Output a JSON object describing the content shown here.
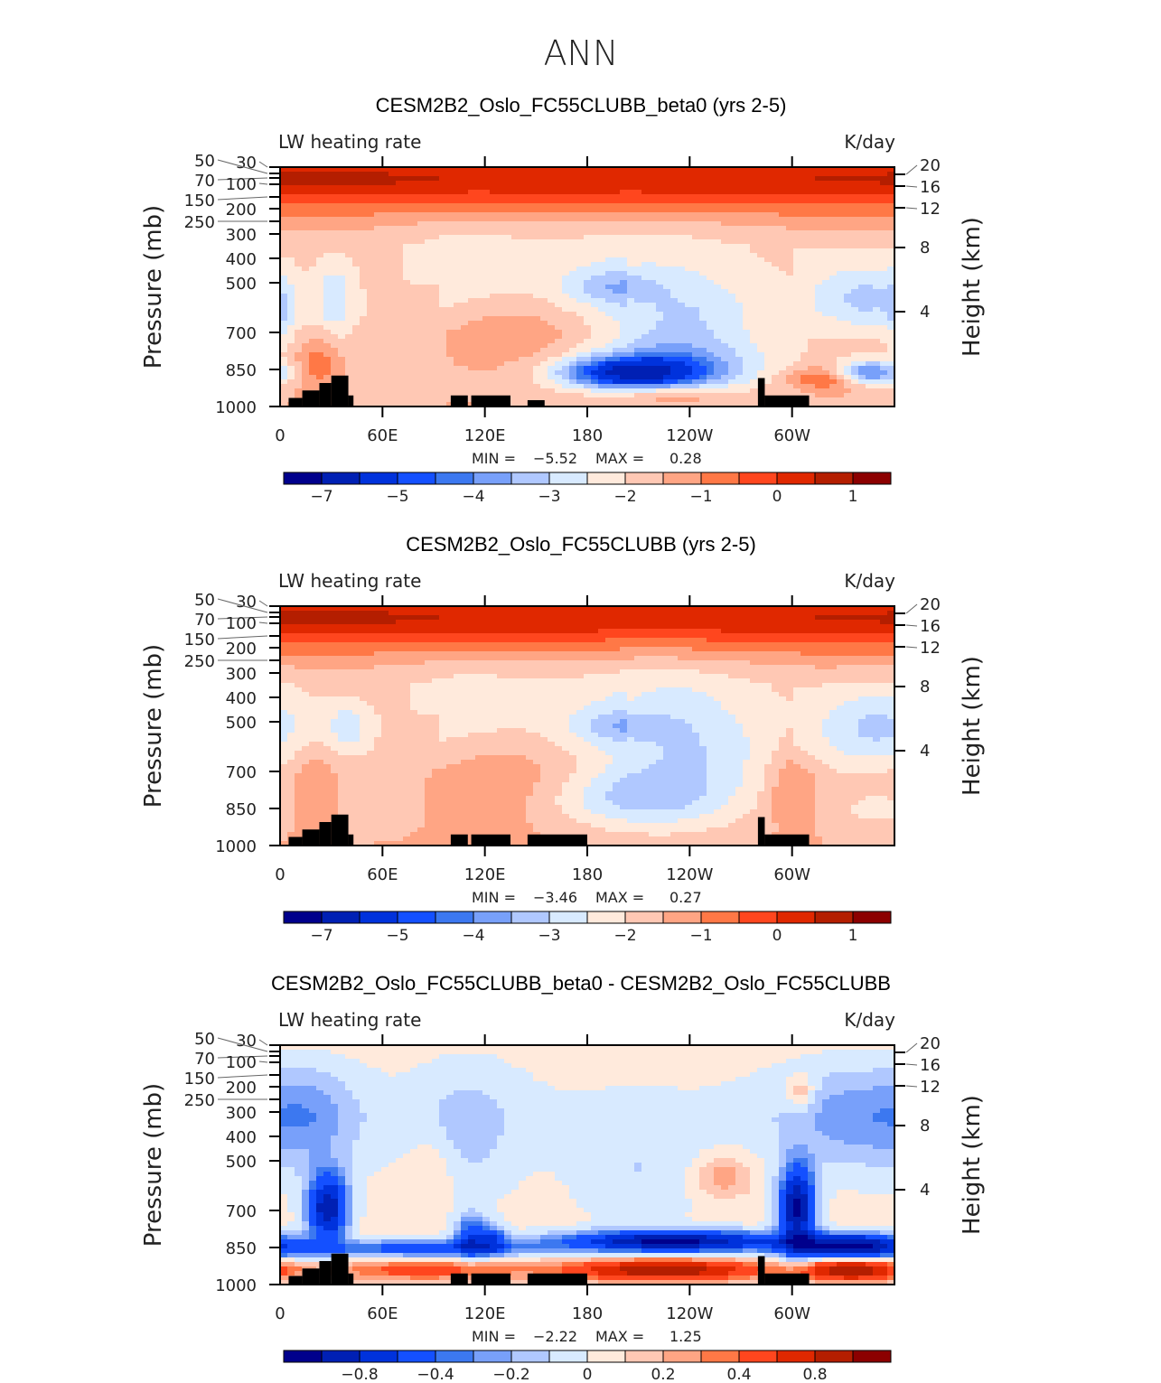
{
  "chart_data": {
    "type": "heatmap",
    "title": "ANN",
    "panels": [
      {
        "title": "CESM2B2_Oslo_FC55CLUBB_beta0 (yrs 2-5)",
        "left_label": "LW heating rate",
        "right_label": "K/day",
        "min_text": "MIN =",
        "min_value": "−5.52",
        "max_text": "MAX =",
        "max_value": "0.28",
        "colorbar_levels": [
          -7,
          -6,
          -5,
          -4.5,
          -4,
          -3.5,
          -3,
          -2.5,
          -2,
          -1.5,
          -1,
          -0.5,
          0,
          0.5,
          1
        ],
        "colorbar_labels": [
          "−7",
          "−5",
          "−4",
          "−3",
          "−2",
          "−1",
          "0",
          "1"
        ]
      },
      {
        "title": "CESM2B2_Oslo_FC55CLUBB (yrs 2-5)",
        "left_label": "LW heating rate",
        "right_label": "K/day",
        "min_text": "MIN =",
        "min_value": "−3.46",
        "max_text": "MAX =",
        "max_value": "0.27",
        "colorbar_levels": [
          -7,
          -6,
          -5,
          -4.5,
          -4,
          -3.5,
          -3,
          -2.5,
          -2,
          -1.5,
          -1,
          -0.5,
          0,
          0.5,
          1
        ],
        "colorbar_labels": [
          "−7",
          "−5",
          "−4",
          "−3",
          "−2",
          "−1",
          "0",
          "1"
        ]
      },
      {
        "title": "CESM2B2_Oslo_FC55CLUBB_beta0 - CESM2B2_Oslo_FC55CLUBB",
        "left_label": "LW heating rate",
        "right_label": "K/day",
        "min_text": "MIN =",
        "min_value": "−2.22",
        "max_text": "MAX =",
        "max_value": "1.25",
        "colorbar_levels": [
          -1,
          -0.8,
          -0.6,
          -0.4,
          -0.3,
          -0.2,
          -0.1,
          0,
          0.1,
          0.2,
          0.3,
          0.4,
          0.6,
          0.8,
          1
        ],
        "colorbar_labels": [
          "−0.8",
          "−0.4",
          "−0.2",
          "0",
          "0.2",
          "0.4",
          "0.8"
        ]
      }
    ],
    "xlabel_ticks": [
      "0",
      "60E",
      "120E",
      "180",
      "120W",
      "60W"
    ],
    "x_values_deg": [
      0,
      60,
      120,
      180,
      240,
      300
    ],
    "ylabel": "Pressure (mb)",
    "y_ticks": [
      "30",
      "50",
      "70",
      "100",
      "150",
      "200",
      "250",
      "300",
      "400",
      "500",
      "700",
      "850",
      "1000"
    ],
    "y2label": "Height (km)",
    "y2_ticks": [
      "20",
      "16",
      "12",
      "8",
      "4"
    ],
    "xlim": [
      0,
      360
    ],
    "ylim_mb": [
      1000,
      30
    ],
    "colors": [
      "#00008c",
      "#0020b4",
      "#0032dc",
      "#1450ff",
      "#3c78f0",
      "#78a0fa",
      "#b0c8ff",
      "#d8eaff",
      "#ffeadc",
      "#ffc8b4",
      "#ffa584",
      "#ff7846",
      "#ff461e",
      "#e02800",
      "#b41e00",
      "#8c0000"
    ]
  }
}
